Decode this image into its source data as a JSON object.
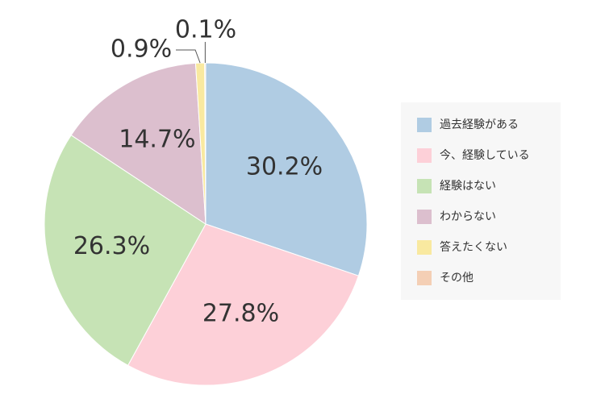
{
  "chart_data": {
    "type": "pie",
    "categories": [
      "過去経験がある",
      "今、経験している",
      "経験はない",
      "わからない",
      "答えたくない",
      "その他"
    ],
    "values": [
      30.2,
      27.8,
      26.3,
      14.7,
      0.9,
      0.1
    ],
    "value_labels": [
      "30.2%",
      "27.8%",
      "26.3%",
      "14.7%",
      "0.9%",
      "0.1%"
    ],
    "colors": [
      "#b0cce3",
      "#fdd0d8",
      "#c6e3b5",
      "#dcbfce",
      "#f9e9a0",
      "#f4cfb5"
    ],
    "legend": "right"
  }
}
